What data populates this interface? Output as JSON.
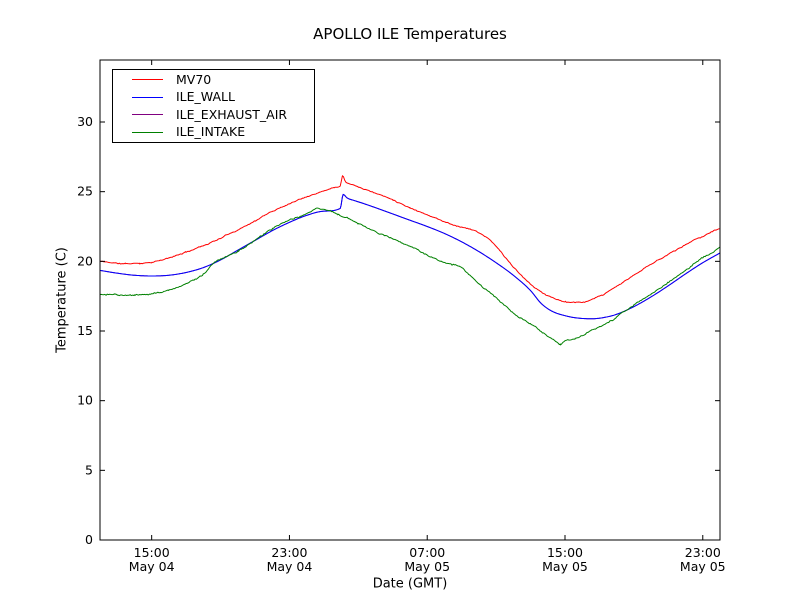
{
  "figure": {
    "background": "#ffffff"
  },
  "chart_data": {
    "type": "line",
    "title": "APOLLO ILE Temperatures",
    "xlabel": "Date (GMT)",
    "ylabel": "Temperature (C)",
    "x_hours_range_note": "x expressed in hours, 0 = May 04 12:00 GMT",
    "xlim": [
      0,
      36
    ],
    "ylim": [
      0,
      34.45
    ],
    "grid": false,
    "legend_position": "upper left",
    "y_ticks": [
      {
        "v": 0,
        "label": "0"
      },
      {
        "v": 5,
        "label": "5"
      },
      {
        "v": 10,
        "label": "10"
      },
      {
        "v": 15,
        "label": "15"
      },
      {
        "v": 20,
        "label": "20"
      },
      {
        "v": 25,
        "label": "25"
      },
      {
        "v": 30,
        "label": "30"
      }
    ],
    "x_ticks": [
      {
        "t": 3,
        "time": "15:00",
        "date": "May 04"
      },
      {
        "t": 11,
        "time": "23:00",
        "date": "May 04"
      },
      {
        "t": 19,
        "time": "07:00",
        "date": "May 05"
      },
      {
        "t": 27,
        "time": "15:00",
        "date": "May 05"
      },
      {
        "t": 35,
        "time": "23:00",
        "date": "May 05"
      }
    ],
    "series": [
      {
        "name": "MV70",
        "color": "#ff0000",
        "z": 3,
        "noise": 0.07,
        "seed": 11,
        "points": [
          [
            0,
            20.0
          ],
          [
            0.7,
            19.9
          ],
          [
            1.5,
            19.82
          ],
          [
            2.3,
            19.85
          ],
          [
            3,
            19.98
          ],
          [
            4,
            20.25
          ],
          [
            5,
            20.65
          ],
          [
            6,
            21.15
          ],
          [
            7,
            21.7
          ],
          [
            8,
            22.3
          ],
          [
            9,
            22.95
          ],
          [
            10,
            23.6
          ],
          [
            11,
            24.2
          ],
          [
            12,
            24.7
          ],
          [
            13,
            25.1
          ],
          [
            13.6,
            25.35
          ],
          [
            13.95,
            25.5
          ],
          [
            14.08,
            26.2
          ],
          [
            14.25,
            25.8
          ],
          [
            14.6,
            25.6
          ],
          [
            15,
            25.4
          ],
          [
            16,
            24.95
          ],
          [
            17,
            24.45
          ],
          [
            18,
            23.9
          ],
          [
            19,
            23.4
          ],
          [
            20,
            22.9
          ],
          [
            20.7,
            22.6
          ],
          [
            21.4,
            22.4
          ],
          [
            22,
            22.1
          ],
          [
            22.6,
            21.6
          ],
          [
            23.2,
            20.8
          ],
          [
            24,
            19.6
          ],
          [
            25,
            18.3
          ],
          [
            25.6,
            17.8
          ],
          [
            26.2,
            17.4
          ],
          [
            27,
            17.1
          ],
          [
            27.6,
            17.0
          ],
          [
            28.2,
            17.05
          ],
          [
            29,
            17.45
          ],
          [
            30,
            18.15
          ],
          [
            31,
            18.95
          ],
          [
            32,
            19.75
          ],
          [
            33,
            20.5
          ],
          [
            34,
            21.2
          ],
          [
            35,
            21.85
          ],
          [
            36,
            22.4
          ]
        ]
      },
      {
        "name": "ILE_WALL",
        "color": "#0000ff",
        "z": 2,
        "noise": 0,
        "seed": 22,
        "points": [
          [
            0,
            19.35
          ],
          [
            1,
            19.15
          ],
          [
            2,
            19.0
          ],
          [
            3,
            18.95
          ],
          [
            4,
            19.0
          ],
          [
            5,
            19.2
          ],
          [
            6,
            19.55
          ],
          [
            7,
            20.1
          ],
          [
            8,
            20.8
          ],
          [
            9,
            21.5
          ],
          [
            10,
            22.2
          ],
          [
            11,
            22.8
          ],
          [
            12,
            23.3
          ],
          [
            13,
            23.6
          ],
          [
            13.95,
            23.8
          ],
          [
            14.12,
            24.8
          ],
          [
            14.35,
            24.55
          ],
          [
            14.8,
            24.35
          ],
          [
            15.3,
            24.15
          ],
          [
            16,
            23.85
          ],
          [
            17,
            23.4
          ],
          [
            18,
            22.95
          ],
          [
            19,
            22.5
          ],
          [
            20,
            22.0
          ],
          [
            21,
            21.4
          ],
          [
            22,
            20.7
          ],
          [
            23,
            19.9
          ],
          [
            24,
            19.0
          ],
          [
            25,
            17.9
          ],
          [
            25.6,
            17.0
          ],
          [
            26.2,
            16.45
          ],
          [
            27,
            16.1
          ],
          [
            27.8,
            15.92
          ],
          [
            28.6,
            15.88
          ],
          [
            29.4,
            16.0
          ],
          [
            30,
            16.2
          ],
          [
            31,
            16.75
          ],
          [
            32,
            17.45
          ],
          [
            33,
            18.25
          ],
          [
            34,
            19.1
          ],
          [
            35,
            19.9
          ],
          [
            36,
            20.6
          ]
        ]
      },
      {
        "name": "ILE_EXHAUST_AIR",
        "color": "#800080",
        "z": 1,
        "noise": 0,
        "seed": 33,
        "points": [
          [
            0,
            19.35
          ],
          [
            1,
            19.15
          ],
          [
            2,
            19.0
          ],
          [
            3,
            18.95
          ],
          [
            4,
            19.0
          ],
          [
            5,
            19.2
          ],
          [
            6,
            19.55
          ],
          [
            7,
            20.1
          ],
          [
            8,
            20.8
          ],
          [
            9,
            21.5
          ],
          [
            10,
            22.2
          ],
          [
            11,
            22.8
          ],
          [
            12,
            23.3
          ],
          [
            13,
            23.6
          ],
          [
            13.95,
            23.8
          ],
          [
            14.12,
            24.8
          ],
          [
            14.35,
            24.55
          ],
          [
            14.8,
            24.35
          ],
          [
            15.3,
            24.15
          ],
          [
            16,
            23.85
          ],
          [
            17,
            23.4
          ],
          [
            18,
            22.95
          ],
          [
            19,
            22.5
          ],
          [
            20,
            22.0
          ],
          [
            21,
            21.4
          ],
          [
            22,
            20.7
          ],
          [
            23,
            19.9
          ],
          [
            24,
            19.0
          ],
          [
            25,
            17.9
          ],
          [
            25.6,
            17.0
          ],
          [
            26.2,
            16.45
          ],
          [
            27,
            16.1
          ],
          [
            27.8,
            15.92
          ],
          [
            28.6,
            15.88
          ],
          [
            29.4,
            16.0
          ],
          [
            30,
            16.2
          ],
          [
            31,
            16.75
          ],
          [
            32,
            17.45
          ],
          [
            33,
            18.25
          ],
          [
            34,
            19.1
          ],
          [
            35,
            19.9
          ],
          [
            36,
            20.6
          ]
        ]
      },
      {
        "name": "ILE_INTAKE",
        "color": "#008000",
        "z": 4,
        "noise": 0.1,
        "seed": 44,
        "points": [
          [
            0,
            17.62
          ],
          [
            1,
            17.55
          ],
          [
            2,
            17.5
          ],
          [
            3,
            17.6
          ],
          [
            4,
            17.85
          ],
          [
            5,
            18.3
          ],
          [
            6,
            19.1
          ],
          [
            6.6,
            19.8
          ],
          [
            7,
            20.1
          ],
          [
            8,
            20.75
          ],
          [
            9,
            21.5
          ],
          [
            10,
            22.3
          ],
          [
            11,
            22.95
          ],
          [
            12,
            23.45
          ],
          [
            12.7,
            23.8
          ],
          [
            13.3,
            23.75
          ],
          [
            13.8,
            23.45
          ],
          [
            14.3,
            23.15
          ],
          [
            15,
            22.75
          ],
          [
            16,
            22.2
          ],
          [
            17,
            21.65
          ],
          [
            18,
            21.1
          ],
          [
            19,
            20.5
          ],
          [
            19.6,
            20.2
          ],
          [
            20.3,
            19.9
          ],
          [
            20.9,
            19.65
          ],
          [
            21.4,
            19.1
          ],
          [
            22,
            18.4
          ],
          [
            23,
            17.3
          ],
          [
            24,
            16.35
          ],
          [
            25,
            15.55
          ],
          [
            25.7,
            14.9
          ],
          [
            26.1,
            14.45
          ],
          [
            26.5,
            14.15
          ],
          [
            26.75,
            13.95
          ],
          [
            27,
            14.3
          ],
          [
            27.6,
            14.45
          ],
          [
            28.2,
            14.75
          ],
          [
            29,
            15.3
          ],
          [
            30,
            16.05
          ],
          [
            31,
            16.8
          ],
          [
            32,
            17.55
          ],
          [
            33,
            18.4
          ],
          [
            34,
            19.3
          ],
          [
            35,
            20.2
          ],
          [
            36,
            21.0
          ]
        ]
      }
    ]
  }
}
